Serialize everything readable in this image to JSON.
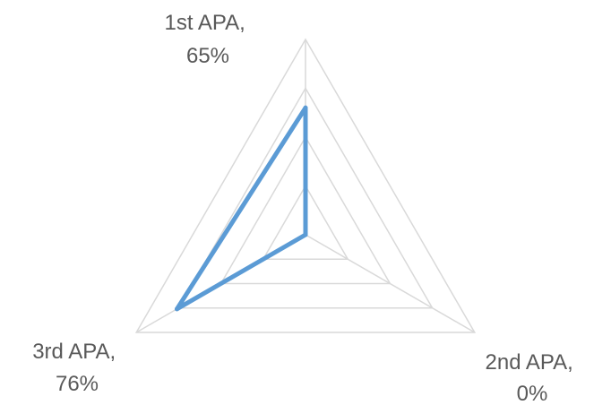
{
  "chart_data": {
    "type": "radar",
    "categories": [
      "1st APA",
      "2nd APA",
      "3rd APA"
    ],
    "values": [
      0.65,
      0.0,
      0.76
    ],
    "data_labels": [
      {
        "line1": "1st APA,",
        "line2": "65%"
      },
      {
        "line1": "2nd APA,",
        "line2": "0%"
      },
      {
        "line1": "3rd APA,",
        "line2": "76%"
      }
    ],
    "radial_axis": {
      "min": 0,
      "max": 1,
      "gridlines": 4
    },
    "grid": true,
    "legend": "none",
    "colors": {
      "series_line": "#5B9BD5",
      "gridline": "#D9D9D9",
      "label_text": "#595959"
    }
  }
}
